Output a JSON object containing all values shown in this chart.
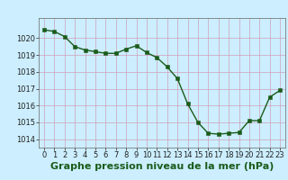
{
  "x": [
    0,
    1,
    2,
    3,
    4,
    5,
    6,
    7,
    8,
    9,
    10,
    11,
    12,
    13,
    14,
    15,
    16,
    17,
    18,
    19,
    20,
    21,
    22,
    23
  ],
  "y": [
    1020.5,
    1020.4,
    1020.1,
    1019.5,
    1019.3,
    1019.2,
    1019.1,
    1019.1,
    1019.35,
    1019.55,
    1019.15,
    1018.85,
    1018.3,
    1017.6,
    1016.1,
    1015.0,
    1014.35,
    1014.3,
    1014.35,
    1014.4,
    1015.1,
    1015.1,
    1016.5,
    1016.9
  ],
  "line_color": "#1a5c1a",
  "marker_color": "#1a5c1a",
  "bg_color": "#cceeff",
  "grid_color": "#d0a0b8",
  "xlabel": "Graphe pression niveau de la mer (hPa)",
  "xlabel_color": "#1a5c1a",
  "ylim": [
    1013.5,
    1021.2
  ],
  "xlim": [
    -0.5,
    23.5
  ],
  "yticks": [
    1014,
    1015,
    1016,
    1017,
    1018,
    1019,
    1020
  ],
  "xticks": [
    0,
    1,
    2,
    3,
    4,
    5,
    6,
    7,
    8,
    9,
    10,
    11,
    12,
    13,
    14,
    15,
    16,
    17,
    18,
    19,
    20,
    21,
    22,
    23
  ],
  "tick_label_fontsize": 6.0,
  "xlabel_fontsize": 8.0,
  "marker_size": 2.2,
  "line_width": 1.0
}
